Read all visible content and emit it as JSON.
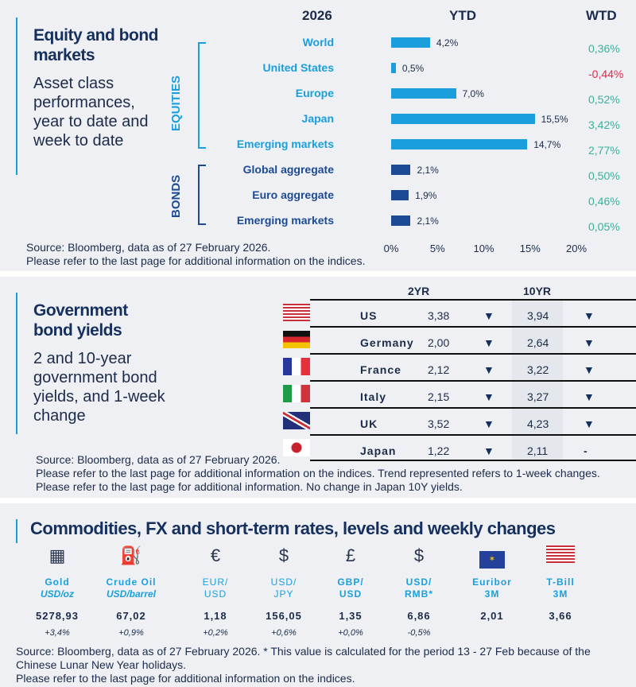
{
  "section1": {
    "title": "Equity and bond markets",
    "subtitle": "Asset class performances, year to date and week to date",
    "year": "2026",
    "ytd_header": "YTD",
    "wtd_header": "WTD",
    "group_equities": "EQUITIES",
    "group_bonds": "BONDS",
    "source": "Source: Bloomberg, data as of 27 February 2026.",
    "note": "Please refer to the last page for additional information on the indices."
  },
  "chart_data": {
    "type": "bar",
    "orientation": "horizontal",
    "title": "YTD",
    "xlim": [
      0,
      20
    ],
    "ticks": [
      "0%",
      "5%",
      "10%",
      "15%",
      "20%"
    ],
    "categories": [
      "World",
      "United States",
      "Europe",
      "Japan",
      "Emerging  markets",
      "Global aggregate",
      "Euro aggregate",
      "Emerging  markets"
    ],
    "groups": [
      "equities",
      "equities",
      "equities",
      "equities",
      "equities",
      "bonds",
      "bonds",
      "bonds"
    ],
    "values": [
      4.2,
      0.5,
      7.0,
      15.5,
      14.7,
      2.1,
      1.9,
      2.1
    ],
    "labels": [
      "4,2%",
      "0,5%",
      "7,0%",
      "15,5%",
      "14,7%",
      "2,1%",
      "1,9%",
      "2,1%"
    ],
    "wtd": [
      "0,36%",
      "-0,44%",
      "0,52%",
      "3,42%",
      "2,77%",
      "0,50%",
      "0,46%",
      "0,05%"
    ],
    "wtd_values": [
      0.36,
      -0.44,
      0.52,
      3.42,
      2.77,
      0.5,
      0.46,
      0.05
    ]
  },
  "colors": {
    "equities": "#1a9fdc",
    "bonds": "#1d4a94",
    "positive": "#35b39a",
    "negative": "#e3284c"
  },
  "section2": {
    "title": "Government bond yields",
    "subtitle": "2 and 10-year government bond yields, and 1-week change",
    "col2": "2YR",
    "col10": "10YR",
    "rows": [
      {
        "country": "US",
        "y2": "3,38",
        "t2": "▼",
        "y10": "3,94",
        "t10": "▼"
      },
      {
        "country": "Germany",
        "y2": "2,00",
        "t2": "▼",
        "y10": "2,64",
        "t10": "▼"
      },
      {
        "country": "France",
        "y2": "2,12",
        "t2": "▼",
        "y10": "3,22",
        "t10": "▼"
      },
      {
        "country": "Italy",
        "y2": "2,15",
        "t2": "▼",
        "y10": "3,27",
        "t10": "▼"
      },
      {
        "country": "UK",
        "y2": "3,52",
        "t2": "▼",
        "y10": "4,23",
        "t10": "▼"
      },
      {
        "country": "Japan",
        "y2": "1,22",
        "t2": "▼",
        "y10": "2,11",
        "t10": "-"
      }
    ],
    "source": "Source: Bloomberg, data as of 27 February 2026.",
    "note": "Please refer to the last page for additional information on the indices. Trend represented refers to 1-week changes. Please refer to the last page for additional information. No change in Japan 10Y yields."
  },
  "section3": {
    "title": "Commodities, FX and short-term rates, levels and weekly changes",
    "items": [
      {
        "name": "Gold",
        "unit": "USD/oz",
        "value": "5278,93",
        "change": "+3,4%"
      },
      {
        "name": "Crude Oil",
        "unit": "USD/barrel",
        "value": "67,02",
        "change": "+0,9%"
      },
      {
        "name": "EUR/",
        "unit": "USD",
        "value": "1,18",
        "change": "+0,2%"
      },
      {
        "name": "USD/",
        "unit": "JPY",
        "value": "156,05",
        "change": "+0,6%"
      },
      {
        "name": "GBP/",
        "unit": "USD",
        "value": "1,35",
        "change": "+0,0%"
      },
      {
        "name": "USD/",
        "unit": "RMB*",
        "value": "6,86",
        "change": "-0,5%"
      },
      {
        "name": "Euribor",
        "unit": "3M",
        "value": "2,01",
        "change": ""
      },
      {
        "name": "T-Bill",
        "unit": "3M",
        "value": "3,66",
        "change": ""
      }
    ],
    "source": "Source: Bloomberg, data as of 27 February 2026. * This value is calculated for the period 13 - 27 Feb because of the Chinese Lunar New Year holidays.",
    "note": "Please refer to the last page for additional information on the indices."
  }
}
